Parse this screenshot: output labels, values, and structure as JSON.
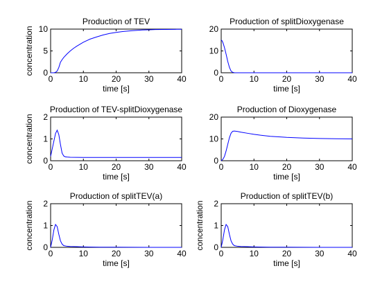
{
  "chart_data": [
    {
      "type": "line",
      "title": "Production of TEV",
      "xlabel": "time [s]",
      "ylabel": "concentration",
      "xlim": [
        0,
        40
      ],
      "ylim": [
        0,
        10
      ],
      "xticks": [
        0,
        10,
        20,
        30,
        40
      ],
      "yticks": [
        0,
        5,
        10
      ],
      "series": [
        {
          "color": "#0000ff",
          "x": [
            0,
            1,
            1.5,
            2,
            2.5,
            3,
            3.5,
            4,
            5,
            6,
            7,
            8,
            10,
            12,
            14,
            16,
            18,
            20,
            22,
            25,
            28,
            30,
            32,
            35,
            38,
            40
          ],
          "y": [
            0.0,
            0.0,
            0.1,
            0.4,
            1.2,
            2.4,
            3.0,
            3.5,
            4.3,
            5.0,
            5.6,
            6.1,
            7.0,
            7.7,
            8.2,
            8.65,
            9.0,
            9.25,
            9.45,
            9.65,
            9.8,
            9.85,
            9.9,
            9.93,
            9.95,
            9.97
          ]
        }
      ]
    },
    {
      "type": "line",
      "title": "Production of splitDioxygenase",
      "xlabel": "time [s]",
      "ylabel": "",
      "xlim": [
        0,
        40
      ],
      "ylim": [
        0,
        20
      ],
      "xticks": [
        0,
        10,
        20,
        30,
        40
      ],
      "yticks": [
        0,
        10,
        20
      ],
      "series": [
        {
          "color": "#0000ff",
          "x": [
            0,
            0.3,
            0.6,
            1,
            1.5,
            2,
            2.5,
            3,
            3.5,
            4,
            5,
            10,
            20,
            30,
            40
          ],
          "y": [
            15,
            14.6,
            13.5,
            11.5,
            8.5,
            5.2,
            2.5,
            0.8,
            0.2,
            0.05,
            0.0,
            0.0,
            0.0,
            0.0,
            0.0
          ]
        }
      ]
    },
    {
      "type": "line",
      "title": "Production of TEV-splitDioxygenase",
      "xlabel": "time [s]",
      "ylabel": "concentration",
      "xlim": [
        0,
        40
      ],
      "ylim": [
        0,
        2
      ],
      "xticks": [
        0,
        10,
        20,
        30,
        40
      ],
      "yticks": [
        0,
        1,
        2
      ],
      "series": [
        {
          "color": "#0000ff",
          "x": [
            0,
            0.5,
            1,
            1.5,
            2,
            2.5,
            3,
            3.5,
            4,
            4.5,
            5,
            6,
            10,
            20,
            30,
            40
          ],
          "y": [
            0.2,
            0.55,
            0.9,
            1.25,
            1.4,
            1.2,
            0.75,
            0.35,
            0.22,
            0.18,
            0.17,
            0.16,
            0.15,
            0.15,
            0.15,
            0.15
          ]
        }
      ]
    },
    {
      "type": "line",
      "title": "Production of Dioxygenase",
      "xlabel": "time [s]",
      "ylabel": "",
      "xlim": [
        0,
        40
      ],
      "ylim": [
        0,
        20
      ],
      "xticks": [
        0,
        10,
        20,
        30,
        40
      ],
      "yticks": [
        0,
        10,
        20
      ],
      "series": [
        {
          "color": "#0000ff",
          "x": [
            0,
            0.5,
            1,
            1.5,
            2,
            2.5,
            3,
            3.5,
            4,
            5,
            6,
            8,
            10,
            12,
            15,
            18,
            20,
            25,
            30,
            35,
            40
          ],
          "y": [
            0.0,
            0.6,
            2.0,
            4.5,
            7.5,
            10.5,
            12.6,
            13.5,
            13.6,
            13.4,
            13.1,
            12.6,
            12.1,
            11.7,
            11.2,
            10.9,
            10.7,
            10.4,
            10.2,
            10.1,
            10.0
          ]
        }
      ]
    },
    {
      "type": "line",
      "title": "Production of splitTEV(a)",
      "xlabel": "time [s]",
      "ylabel": "concentration",
      "xlim": [
        0,
        40
      ],
      "ylim": [
        0,
        2
      ],
      "xticks": [
        0,
        10,
        20,
        30,
        40
      ],
      "yticks": [
        0,
        1,
        2
      ],
      "series": [
        {
          "color": "#0000ff",
          "x": [
            0,
            0.5,
            1,
            1.5,
            2,
            2.5,
            3,
            3.5,
            4,
            5,
            6,
            8,
            10,
            15,
            20,
            30,
            40
          ],
          "y": [
            0.0,
            0.35,
            0.8,
            1.05,
            0.95,
            0.6,
            0.3,
            0.15,
            0.08,
            0.05,
            0.04,
            0.03,
            0.02,
            0.01,
            0.01,
            0.0,
            0.0
          ]
        }
      ]
    },
    {
      "type": "line",
      "title": "Production of splitTEV(b)",
      "xlabel": "time [s]",
      "ylabel": "concentration",
      "xlim": [
        0,
        40
      ],
      "ylim": [
        0,
        2
      ],
      "xticks": [
        0,
        10,
        20,
        30,
        40
      ],
      "yticks": [
        0,
        1,
        2
      ],
      "series": [
        {
          "color": "#0000ff",
          "x": [
            0,
            0.5,
            1,
            1.5,
            2,
            2.5,
            3,
            3.5,
            4,
            5,
            6,
            8,
            10,
            15,
            20,
            30,
            40
          ],
          "y": [
            0.0,
            0.35,
            0.8,
            1.05,
            0.95,
            0.6,
            0.3,
            0.15,
            0.08,
            0.05,
            0.04,
            0.03,
            0.02,
            0.01,
            0.01,
            0.0,
            0.0
          ]
        }
      ]
    }
  ]
}
